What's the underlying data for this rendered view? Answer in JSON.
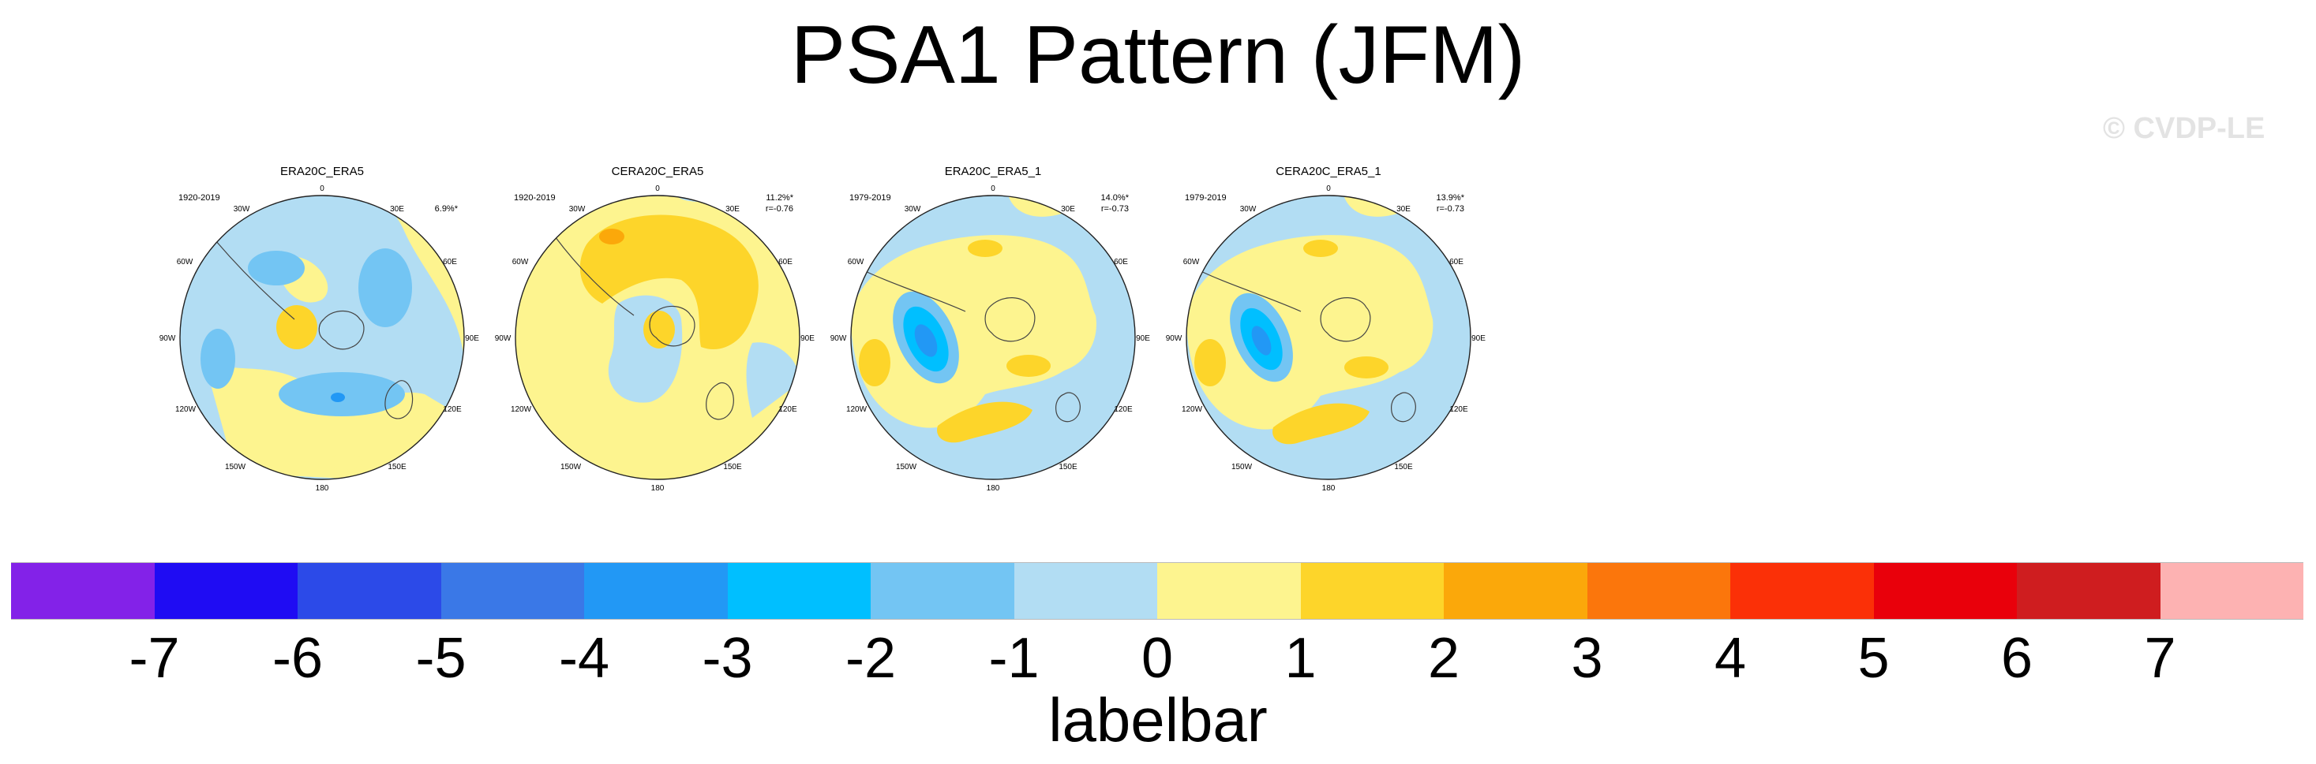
{
  "title": "PSA1 Pattern (JFM)",
  "watermark": "© CVDP-LE",
  "colorbar": {
    "title": "labelbar",
    "ticks": [
      "-7",
      "-6",
      "-5",
      "-4",
      "-3",
      "-2",
      "-1",
      "0",
      "1",
      "2",
      "3",
      "4",
      "5",
      "6",
      "7"
    ],
    "colors": [
      "#8322e8",
      "#1f0cf3",
      "#2c4ae8",
      "#3a78e7",
      "#2298f5",
      "#00bfff",
      "#73c5f3",
      "#b2ddf3",
      "#fdf48f",
      "#fdd52a",
      "#fba80a",
      "#fb760c",
      "#fb3007",
      "#e9000b",
      "#cf1d1f",
      "#fdb2b2"
    ]
  },
  "lon_labels": [
    "0",
    "30E",
    "60E",
    "90E",
    "120E",
    "150E",
    "180",
    "150W",
    "120W",
    "90W",
    "60W",
    "30W"
  ],
  "panels": [
    {
      "title": "ERA20C_ERA5",
      "period": "1920-2019",
      "pct": "6.9%*",
      "r": ""
    },
    {
      "title": "CERA20C_ERA5",
      "period": "1920-2019",
      "pct": "11.2%*",
      "r": "r=-0.76"
    },
    {
      "title": "ERA20C_ERA5_1",
      "period": "1979-2019",
      "pct": "14.0%*",
      "r": "r=-0.73"
    },
    {
      "title": "CERA20C_ERA5_1",
      "period": "1979-2019",
      "pct": "13.9%*",
      "r": "r=-0.73"
    }
  ]
}
